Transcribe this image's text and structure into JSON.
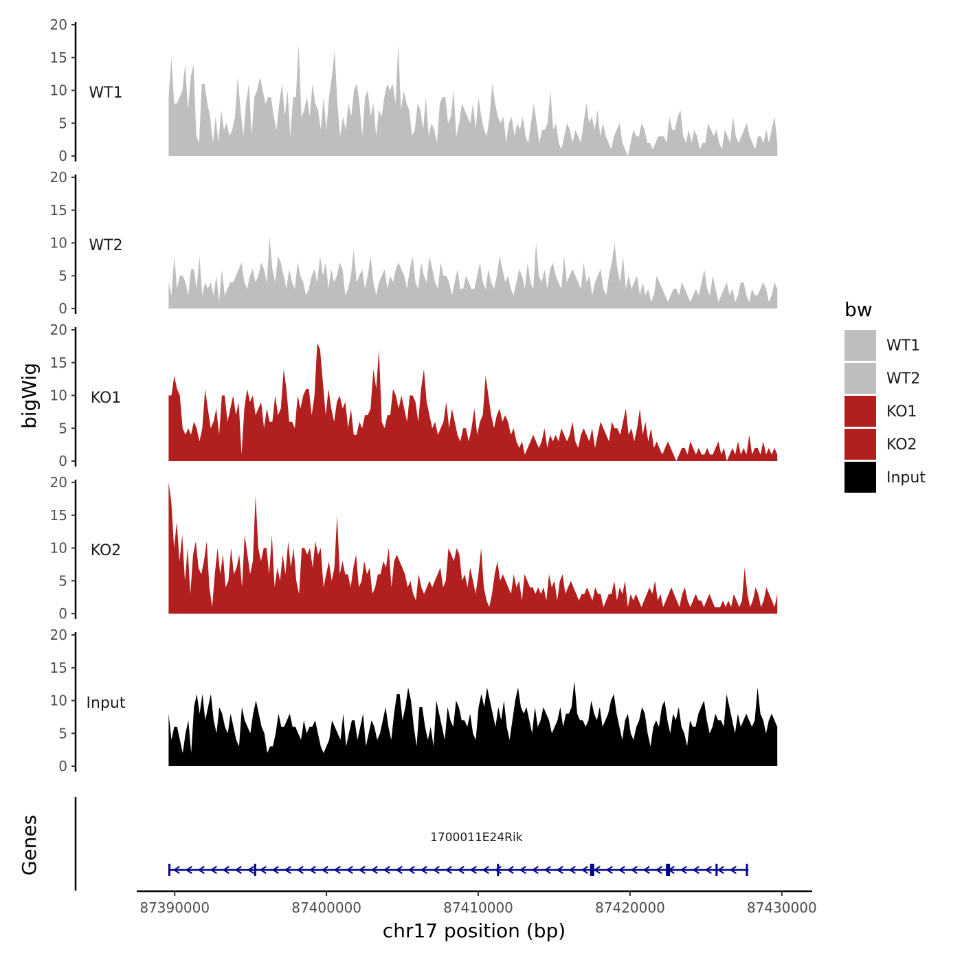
{
  "chart_data": {
    "type": "area",
    "ylabel": "bigWig",
    "genes_label": "Genes",
    "xlabel": "chr17 position (bp)",
    "ylim": [
      0,
      20
    ],
    "y_ticks": [
      "0",
      "5",
      "10",
      "15",
      "20"
    ],
    "xlim": [
      87387500,
      87432000
    ],
    "x_ticks": [
      {
        "value": 87390000,
        "label": "87390000"
      },
      {
        "value": 87400000,
        "label": "87400000"
      },
      {
        "value": 87410000,
        "label": "87410000"
      },
      {
        "value": 87420000,
        "label": "87420000"
      },
      {
        "value": 87430000,
        "label": "87430000"
      }
    ],
    "data_range": [
      87389600,
      87429700
    ],
    "legend": {
      "title": "bw",
      "entries": [
        {
          "name": "WT1",
          "color": "#bebebe"
        },
        {
          "name": "WT2",
          "color": "#bebebe"
        },
        {
          "name": "KO1",
          "color": "#b21f1f"
        },
        {
          "name": "KO2",
          "color": "#b21f1f"
        },
        {
          "name": "Input",
          "color": "#000000"
        }
      ]
    },
    "series": [
      {
        "name": "WT1",
        "color": "#bebebe",
        "values": [
          9,
          15,
          8,
          8,
          9,
          10,
          14,
          7,
          12,
          14,
          3,
          2,
          11,
          11,
          8,
          6,
          2,
          6,
          2,
          7,
          4,
          5,
          3,
          4,
          6,
          12,
          7,
          3,
          8,
          11,
          3,
          9,
          10,
          12,
          10,
          8,
          9,
          9,
          6,
          4,
          8,
          11,
          6,
          10,
          3,
          9,
          9,
          17,
          6,
          7,
          9,
          6,
          11,
          8,
          7,
          4,
          9,
          4,
          9,
          12,
          16,
          8,
          3,
          6,
          4,
          8,
          6,
          10,
          11,
          8,
          3,
          9,
          10,
          6,
          8,
          3,
          7,
          6,
          9,
          11,
          10,
          11,
          8,
          17,
          7,
          10,
          8,
          7,
          3,
          4,
          8,
          7,
          4,
          9,
          3,
          5,
          4,
          2,
          8,
          9,
          9,
          5,
          6,
          10,
          3,
          5,
          8,
          7,
          6,
          5,
          8,
          4,
          9,
          6,
          4,
          3,
          6,
          11,
          8,
          6,
          5,
          6,
          2,
          5,
          6,
          3,
          5,
          4,
          6,
          3,
          2,
          5,
          8,
          5,
          2,
          4,
          4,
          5,
          10,
          4,
          5,
          2,
          1,
          3,
          5,
          4,
          2,
          4,
          3,
          2,
          5,
          8,
          5,
          6,
          4,
          7,
          3,
          5,
          3,
          2,
          1,
          3,
          4,
          5,
          2,
          1,
          0,
          2,
          4,
          3,
          3,
          5,
          4,
          2,
          2,
          1,
          2,
          3,
          3,
          3,
          2,
          6,
          4,
          4,
          6,
          7,
          3,
          2,
          4,
          2,
          4,
          3,
          1,
          2,
          2,
          5,
          4,
          3,
          4,
          2,
          1,
          4,
          3,
          2,
          6,
          3,
          2,
          3,
          4,
          5,
          3,
          2,
          1,
          3,
          3,
          2,
          4,
          2,
          4,
          6,
          2
        ]
      },
      {
        "name": "WT2",
        "color": "#bebebe",
        "values": [
          4,
          2,
          8,
          3,
          5,
          5,
          4,
          2,
          6,
          6,
          3,
          8,
          2,
          4,
          3,
          4,
          2,
          5,
          1,
          6,
          2,
          3,
          4,
          4,
          5,
          6,
          7,
          4,
          3,
          5,
          6,
          4,
          5,
          7,
          6,
          4,
          11,
          6,
          4,
          8,
          7,
          5,
          3,
          6,
          4,
          3,
          7,
          5,
          4,
          2,
          3,
          5,
          6,
          4,
          8,
          5,
          7,
          3,
          6,
          4,
          5,
          7,
          6,
          2,
          3,
          5,
          9,
          4,
          5,
          6,
          3,
          5,
          8,
          4,
          2,
          4,
          5,
          6,
          3,
          5,
          4,
          6,
          7,
          6,
          5,
          3,
          6,
          8,
          4,
          3,
          7,
          5,
          4,
          8,
          6,
          4,
          3,
          7,
          5,
          5,
          4,
          2,
          4,
          6,
          3,
          3,
          5,
          4,
          3,
          3,
          5,
          7,
          4,
          3,
          6,
          4,
          3,
          5,
          8,
          6,
          4,
          5,
          3,
          2,
          4,
          6,
          5,
          3,
          7,
          4,
          3,
          10,
          5,
          4,
          6,
          3,
          6,
          7,
          5,
          4,
          3,
          8,
          4,
          5,
          6,
          5,
          4,
          3,
          7,
          4,
          5,
          2,
          4,
          5,
          6,
          3,
          2,
          5,
          7,
          10,
          6,
          4,
          8,
          3,
          5,
          3,
          4,
          5,
          2,
          4,
          2,
          3,
          1,
          2,
          5,
          4,
          3,
          2,
          1,
          2,
          3,
          3,
          2,
          4,
          3,
          2,
          1,
          2,
          3,
          2,
          4,
          6,
          3,
          2,
          5,
          3,
          1,
          2,
          3,
          4,
          2,
          3,
          1,
          2,
          4,
          4,
          2,
          1,
          3,
          2,
          2,
          3,
          4,
          3,
          1,
          2,
          4,
          3
        ]
      },
      {
        "name": "KO1",
        "color": "#b21f1f",
        "values": [
          10,
          10,
          13,
          11,
          10,
          5,
          4,
          5,
          4,
          6,
          5,
          3,
          5,
          11,
          8,
          5,
          6,
          8,
          4,
          10,
          10,
          6,
          8,
          10,
          7,
          9,
          1,
          8,
          11,
          9,
          10,
          7,
          8,
          9,
          5,
          8,
          6,
          6,
          10,
          7,
          8,
          14,
          11,
          6,
          6,
          5,
          10,
          8,
          10,
          11,
          11,
          7,
          10,
          18,
          17,
          12,
          7,
          11,
          8,
          6,
          9,
          10,
          8,
          9,
          5,
          8,
          4,
          4,
          6,
          5,
          7,
          7,
          8,
          14,
          11,
          17,
          6,
          5,
          7,
          7,
          11,
          10,
          8,
          10,
          8,
          6,
          10,
          10,
          9,
          6,
          11,
          14,
          9,
          7,
          5,
          6,
          4,
          5,
          6,
          9,
          5,
          8,
          6,
          4,
          3,
          5,
          5,
          3,
          5,
          8,
          4,
          6,
          7,
          13,
          10,
          7,
          5,
          7,
          8,
          6,
          7,
          6,
          4,
          5,
          3,
          2,
          3,
          1,
          2,
          3,
          4,
          3,
          2,
          3,
          5,
          2,
          4,
          3,
          4,
          3,
          5,
          4,
          3,
          4,
          6,
          3,
          2,
          4,
          5,
          4,
          3,
          5,
          2,
          4,
          6,
          5,
          4,
          3,
          6,
          5,
          5,
          4,
          6,
          8,
          4,
          5,
          3,
          5,
          8,
          4,
          6,
          3,
          5,
          2,
          3,
          2,
          1,
          2,
          3,
          2,
          1,
          0,
          1,
          2,
          2,
          1,
          3,
          2,
          1,
          2,
          1,
          1,
          2,
          1,
          1,
          2,
          3,
          1,
          2,
          0,
          1,
          2,
          1,
          3,
          1,
          2,
          1,
          4,
          1,
          2,
          2,
          1,
          3,
          1,
          2,
          1,
          2,
          1
        ]
      },
      {
        "name": "KO2",
        "color": "#b21f1f",
        "values": [
          20,
          17,
          10,
          14,
          8,
          12,
          5,
          10,
          3,
          9,
          11,
          7,
          6,
          8,
          11,
          4,
          1,
          6,
          10,
          6,
          9,
          4,
          5,
          10,
          6,
          7,
          9,
          4,
          12,
          9,
          6,
          8,
          18,
          10,
          8,
          10,
          10,
          6,
          12,
          4,
          7,
          5,
          9,
          6,
          11,
          7,
          10,
          5,
          3,
          10,
          10,
          9,
          10,
          7,
          11,
          9,
          10,
          4,
          6,
          8,
          5,
          7,
          15,
          6,
          8,
          6,
          6,
          4,
          7,
          9,
          4,
          5,
          8,
          6,
          7,
          3,
          4,
          6,
          6,
          8,
          7,
          10,
          4,
          8,
          9,
          8,
          7,
          6,
          4,
          5,
          3,
          2,
          6,
          4,
          3,
          4,
          5,
          4,
          5,
          6,
          7,
          4,
          5,
          10,
          9,
          8,
          10,
          9,
          5,
          6,
          4,
          7,
          5,
          3,
          6,
          10,
          4,
          2,
          1,
          3,
          6,
          8,
          5,
          6,
          5,
          4,
          3,
          6,
          4,
          5,
          2,
          6,
          5,
          4,
          4,
          3,
          4,
          3,
          4,
          2,
          6,
          4,
          5,
          2,
          5,
          6,
          3,
          4,
          5,
          4,
          3,
          2,
          3,
          3,
          4,
          3,
          2,
          4,
          3,
          3,
          1,
          2,
          3,
          3,
          5,
          2,
          4,
          3,
          5,
          1,
          3,
          2,
          3,
          2,
          1,
          2,
          3,
          4,
          3,
          5,
          2,
          3,
          1,
          2,
          3,
          4,
          3,
          2,
          1,
          3,
          4,
          2,
          1,
          2,
          3,
          2,
          2,
          1,
          2,
          3,
          2,
          1,
          1,
          1,
          2,
          1,
          2,
          1,
          3,
          2,
          1,
          2,
          7,
          3,
          1,
          2,
          4,
          3,
          1,
          2,
          4,
          3,
          2,
          1,
          3
        ]
      },
      {
        "name": "Input",
        "color": "#000000",
        "values": [
          8,
          4,
          6,
          6,
          4,
          2,
          5,
          7,
          2,
          9,
          11,
          8,
          11,
          7,
          9,
          11,
          7,
          5,
          9,
          8,
          6,
          5,
          8,
          6,
          4,
          3,
          9,
          7,
          6,
          5,
          8,
          10,
          8,
          6,
          5,
          2,
          3,
          3,
          5,
          8,
          6,
          6,
          7,
          8,
          6,
          6,
          5,
          4,
          7,
          5,
          6,
          6,
          7,
          5,
          3,
          2,
          3,
          4,
          7,
          6,
          5,
          4,
          8,
          3,
          5,
          7,
          7,
          4,
          6,
          8,
          3,
          5,
          7,
          6,
          4,
          5,
          7,
          9,
          6,
          4,
          8,
          11,
          11,
          7,
          9,
          12,
          10,
          6,
          3,
          9,
          9,
          6,
          4,
          6,
          3,
          10,
          8,
          6,
          4,
          9,
          7,
          6,
          10,
          9,
          7,
          7,
          6,
          8,
          5,
          4,
          9,
          11,
          9,
          12,
          10,
          8,
          6,
          9,
          7,
          10,
          6,
          4,
          7,
          10,
          12,
          9,
          8,
          9,
          7,
          5,
          9,
          6,
          7,
          9,
          8,
          7,
          5,
          6,
          7,
          9,
          6,
          8,
          8,
          9,
          13,
          8,
          7,
          7,
          6,
          7,
          10,
          8,
          7,
          9,
          6,
          7,
          8,
          10,
          11,
          8,
          6,
          4,
          7,
          8,
          5,
          4,
          6,
          7,
          9,
          8,
          5,
          3,
          6,
          7,
          6,
          9,
          10,
          7,
          5,
          8,
          7,
          9,
          6,
          5,
          3,
          7,
          6,
          6,
          8,
          9,
          10,
          7,
          5,
          6,
          8,
          7,
          7,
          6,
          11,
          9,
          7,
          5,
          8,
          6,
          7,
          8,
          7,
          6,
          7,
          12,
          8,
          7,
          5,
          7,
          8,
          7,
          6
        ]
      }
    ],
    "genes": [
      {
        "name": "1700011E24Rik",
        "start": 87389600,
        "end": 87427800,
        "strand": "-",
        "color": "#00008b",
        "exons": [
          87389650,
          87395300,
          87411300,
          87417500,
          87422500,
          87425700,
          87427700
        ]
      }
    ]
  }
}
